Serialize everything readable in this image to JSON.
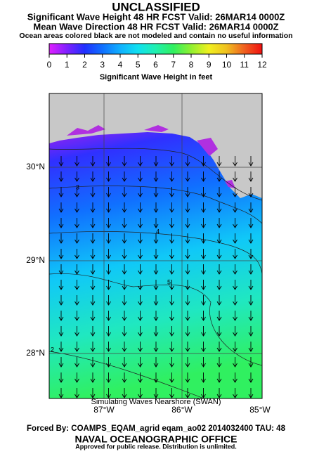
{
  "header": {
    "classification": "UNCLASSIFIED",
    "line1": "Significant Wave Height 48 HR FCST Valid: 26MAR14 0000Z",
    "line2": "Mean Wave Direction 48 HR FCST Valid: 26MAR14 0000Z",
    "line3": "Ocean areas colored black are not modeled and contain no useful information"
  },
  "colorbar": {
    "range": [
      0,
      12
    ],
    "ticks": [
      0,
      1,
      2,
      3,
      4,
      5,
      6,
      7,
      8,
      9,
      10,
      11,
      12
    ],
    "colors": [
      "#e020ff",
      "#8020ff",
      "#2030ff",
      "#1070ff",
      "#10b0ff",
      "#10e0f0",
      "#20f0b0",
      "#30f060",
      "#90f030",
      "#f0f020",
      "#f0c020",
      "#f06020",
      "#f01010"
    ],
    "label": "Significant Wave Height in feet"
  },
  "map": {
    "lat_labels": [
      "30°N",
      "29°N",
      "28°N"
    ],
    "lon_labels": [
      "87°W",
      "86°W",
      "85°W"
    ],
    "contour_labels": [
      "3",
      "4",
      "5",
      "2"
    ]
  },
  "footer": {
    "model": "Simulating Waves Nearshore (SWAN)",
    "forcing": "Forced By: COAMPS_EQAM_agrid eqam_ao02 2014032400 TAU: 48",
    "office": "NAVAL OCEANOGRAPHIC OFFICE",
    "release": "Approved for public release. Distribution is unlimited."
  }
}
